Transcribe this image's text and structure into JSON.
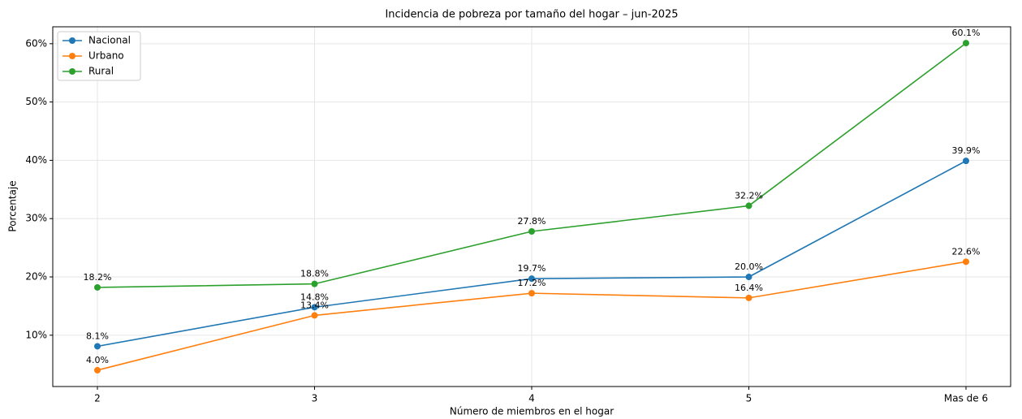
{
  "chart_data": {
    "type": "line",
    "title": "Incidencia de pobreza por tamaño del hogar – jun-2025",
    "x_label": "Número de miembros en el hogar",
    "y_label": "Porcentaje",
    "categories": [
      "2",
      "3",
      "4",
      "5",
      "Mas de 6"
    ],
    "series": [
      {
        "name": "Nacional",
        "color": "#1f77b4",
        "values": [
          8.1,
          14.8,
          19.7,
          20.0,
          39.9
        ],
        "value_labels": [
          "8.1%",
          "14.8%",
          "19.7%",
          "20.0%",
          "39.9%"
        ]
      },
      {
        "name": "Urbano",
        "color": "#ff7f0e",
        "values": [
          4.0,
          13.4,
          17.2,
          16.4,
          22.6
        ],
        "value_labels": [
          "4.0%",
          "13.4%",
          "17.2%",
          "16.4%",
          "22.6%"
        ]
      },
      {
        "name": "Rural",
        "color": "#2ca02c",
        "values": [
          18.2,
          18.8,
          27.8,
          32.2,
          60.1
        ],
        "value_labels": [
          "18.2%",
          "18.8%",
          "27.8%",
          "32.2%",
          "60.1%"
        ]
      }
    ],
    "ylim": [
      1.2,
      62.9
    ],
    "yticks": [
      {
        "value": 10,
        "label": "10%"
      },
      {
        "value": 20,
        "label": "20%"
      },
      {
        "value": 30,
        "label": "30%"
      },
      {
        "value": 40,
        "label": "40%"
      },
      {
        "value": 50,
        "label": "50%"
      },
      {
        "value": 60,
        "label": "60%"
      }
    ],
    "grid": true,
    "legend": "upper-left"
  }
}
